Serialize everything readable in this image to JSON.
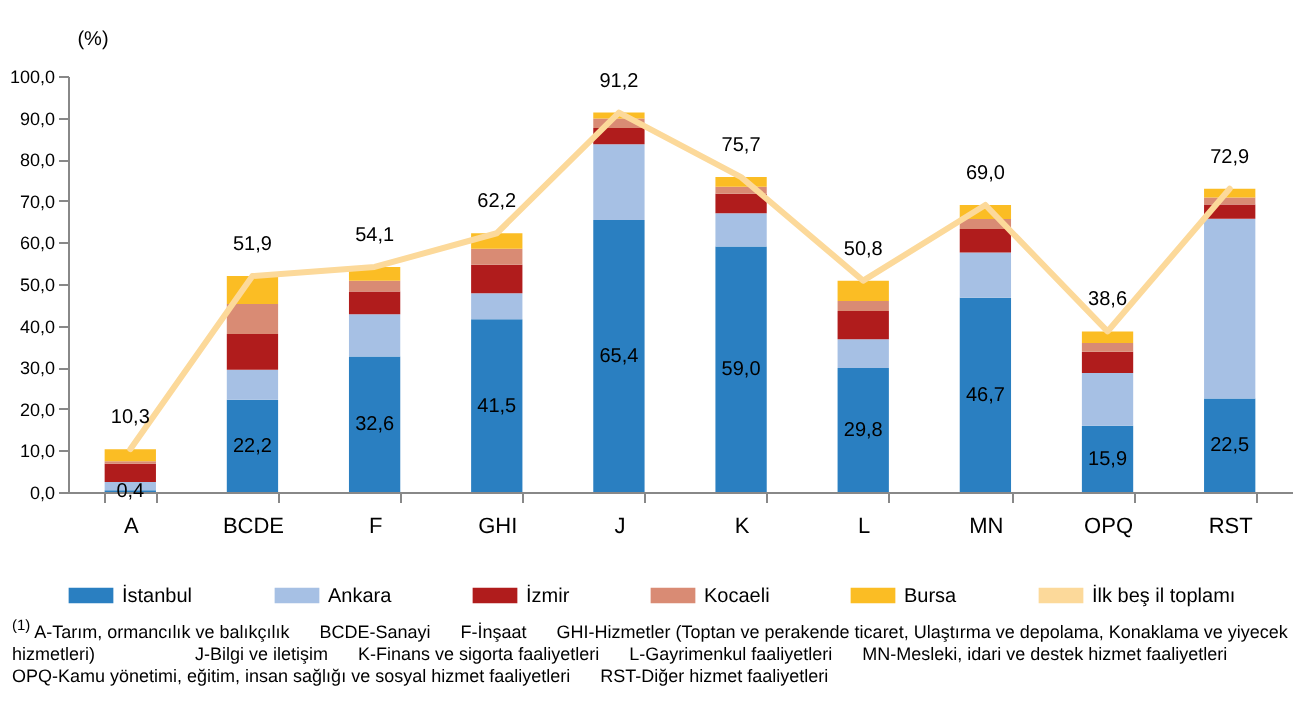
{
  "chart_data": {
    "type": "bar",
    "stacked": true,
    "ylabel": "(%)",
    "categories": [
      "A",
      "BCDE",
      "F",
      "GHI",
      "J",
      "K",
      "L",
      "MN",
      "OPQ",
      "RST"
    ],
    "ylim": [
      0,
      100
    ],
    "yticks": [
      {
        "value": 0,
        "label": "0,0"
      },
      {
        "value": 10,
        "label": "10,0"
      },
      {
        "value": 20,
        "label": "20,0"
      },
      {
        "value": 30,
        "label": "30,0"
      },
      {
        "value": 40,
        "label": "40,0"
      },
      {
        "value": 50,
        "label": "50,0"
      },
      {
        "value": 60,
        "label": "60,0"
      },
      {
        "value": 70,
        "label": "70,0"
      },
      {
        "value": 80,
        "label": "80,0"
      },
      {
        "value": 90,
        "label": "90,0"
      },
      {
        "value": 100,
        "label": "100,0"
      }
    ],
    "series": [
      {
        "name": "İstanbul",
        "color": "#2a7fc1",
        "values": [
          0.4,
          22.2,
          32.6,
          41.5,
          65.4,
          59.0,
          29.8,
          46.7,
          15.9,
          22.5
        ],
        "value_labels": [
          "0,4",
          "22,2",
          "32,6",
          "41,5",
          "65,4",
          "59,0",
          "29,8",
          "46,7",
          "15,9",
          "22,5"
        ]
      },
      {
        "name": "Ankara",
        "color": "#a6c0e4",
        "values": [
          2.0,
          7.2,
          10.1,
          6.3,
          18.2,
          8.0,
          6.9,
          10.9,
          12.7,
          43.2
        ]
      },
      {
        "name": "İzmir",
        "color": "#b01c1c",
        "values": [
          4.4,
          8.6,
          5.5,
          6.8,
          3.9,
          4.7,
          6.8,
          5.6,
          5.1,
          3.4
        ]
      },
      {
        "name": "Kocaeli",
        "color": "#d98b74",
        "values": [
          0.6,
          7.2,
          2.6,
          3.9,
          2.3,
          1.7,
          2.4,
          2.4,
          2.1,
          1.7
        ]
      },
      {
        "name": "Bursa",
        "color": "#fbbd24",
        "values": [
          2.9,
          6.7,
          3.3,
          3.7,
          1.4,
          2.3,
          4.9,
          3.4,
          2.8,
          2.1
        ]
      },
      {
        "name": "İlk beş il toplamı",
        "type": "line",
        "color": "#fcd99a",
        "values": [
          10.3,
          51.9,
          54.1,
          62.2,
          91.2,
          75.7,
          50.8,
          69.0,
          38.6,
          72.9
        ],
        "value_labels": [
          "10,3",
          "51,9",
          "54,1",
          "62,2",
          "91,2",
          "75,7",
          "50,8",
          "69,0",
          "38,6",
          "72,9"
        ]
      }
    ],
    "legend": "bottom",
    "annotations": [
      "$^{(1)}$ A-Tarım, ormancılık ve balıkçılık      BCDE-Sanayi      F-İnşaat      GHI-Hizmetler (Toptan ve perakende ticaret, Ulaştırma ve depolama, Konaklama ve yiyecek hizmetleri)                    J-Bilgi ve iletişim      K-Finans ve sigorta faaliyetleri      L-Gayrimenkul faaliyetleri      MN-Mesleki, idari ve destek hizmet faaliyetleri      OPQ-Kamu yönetimi, eğitim, insan sağlığı ve sosyal hizmet faaliyetleri      RST-Diğer hizmet faaliyetleri"
    ]
  }
}
